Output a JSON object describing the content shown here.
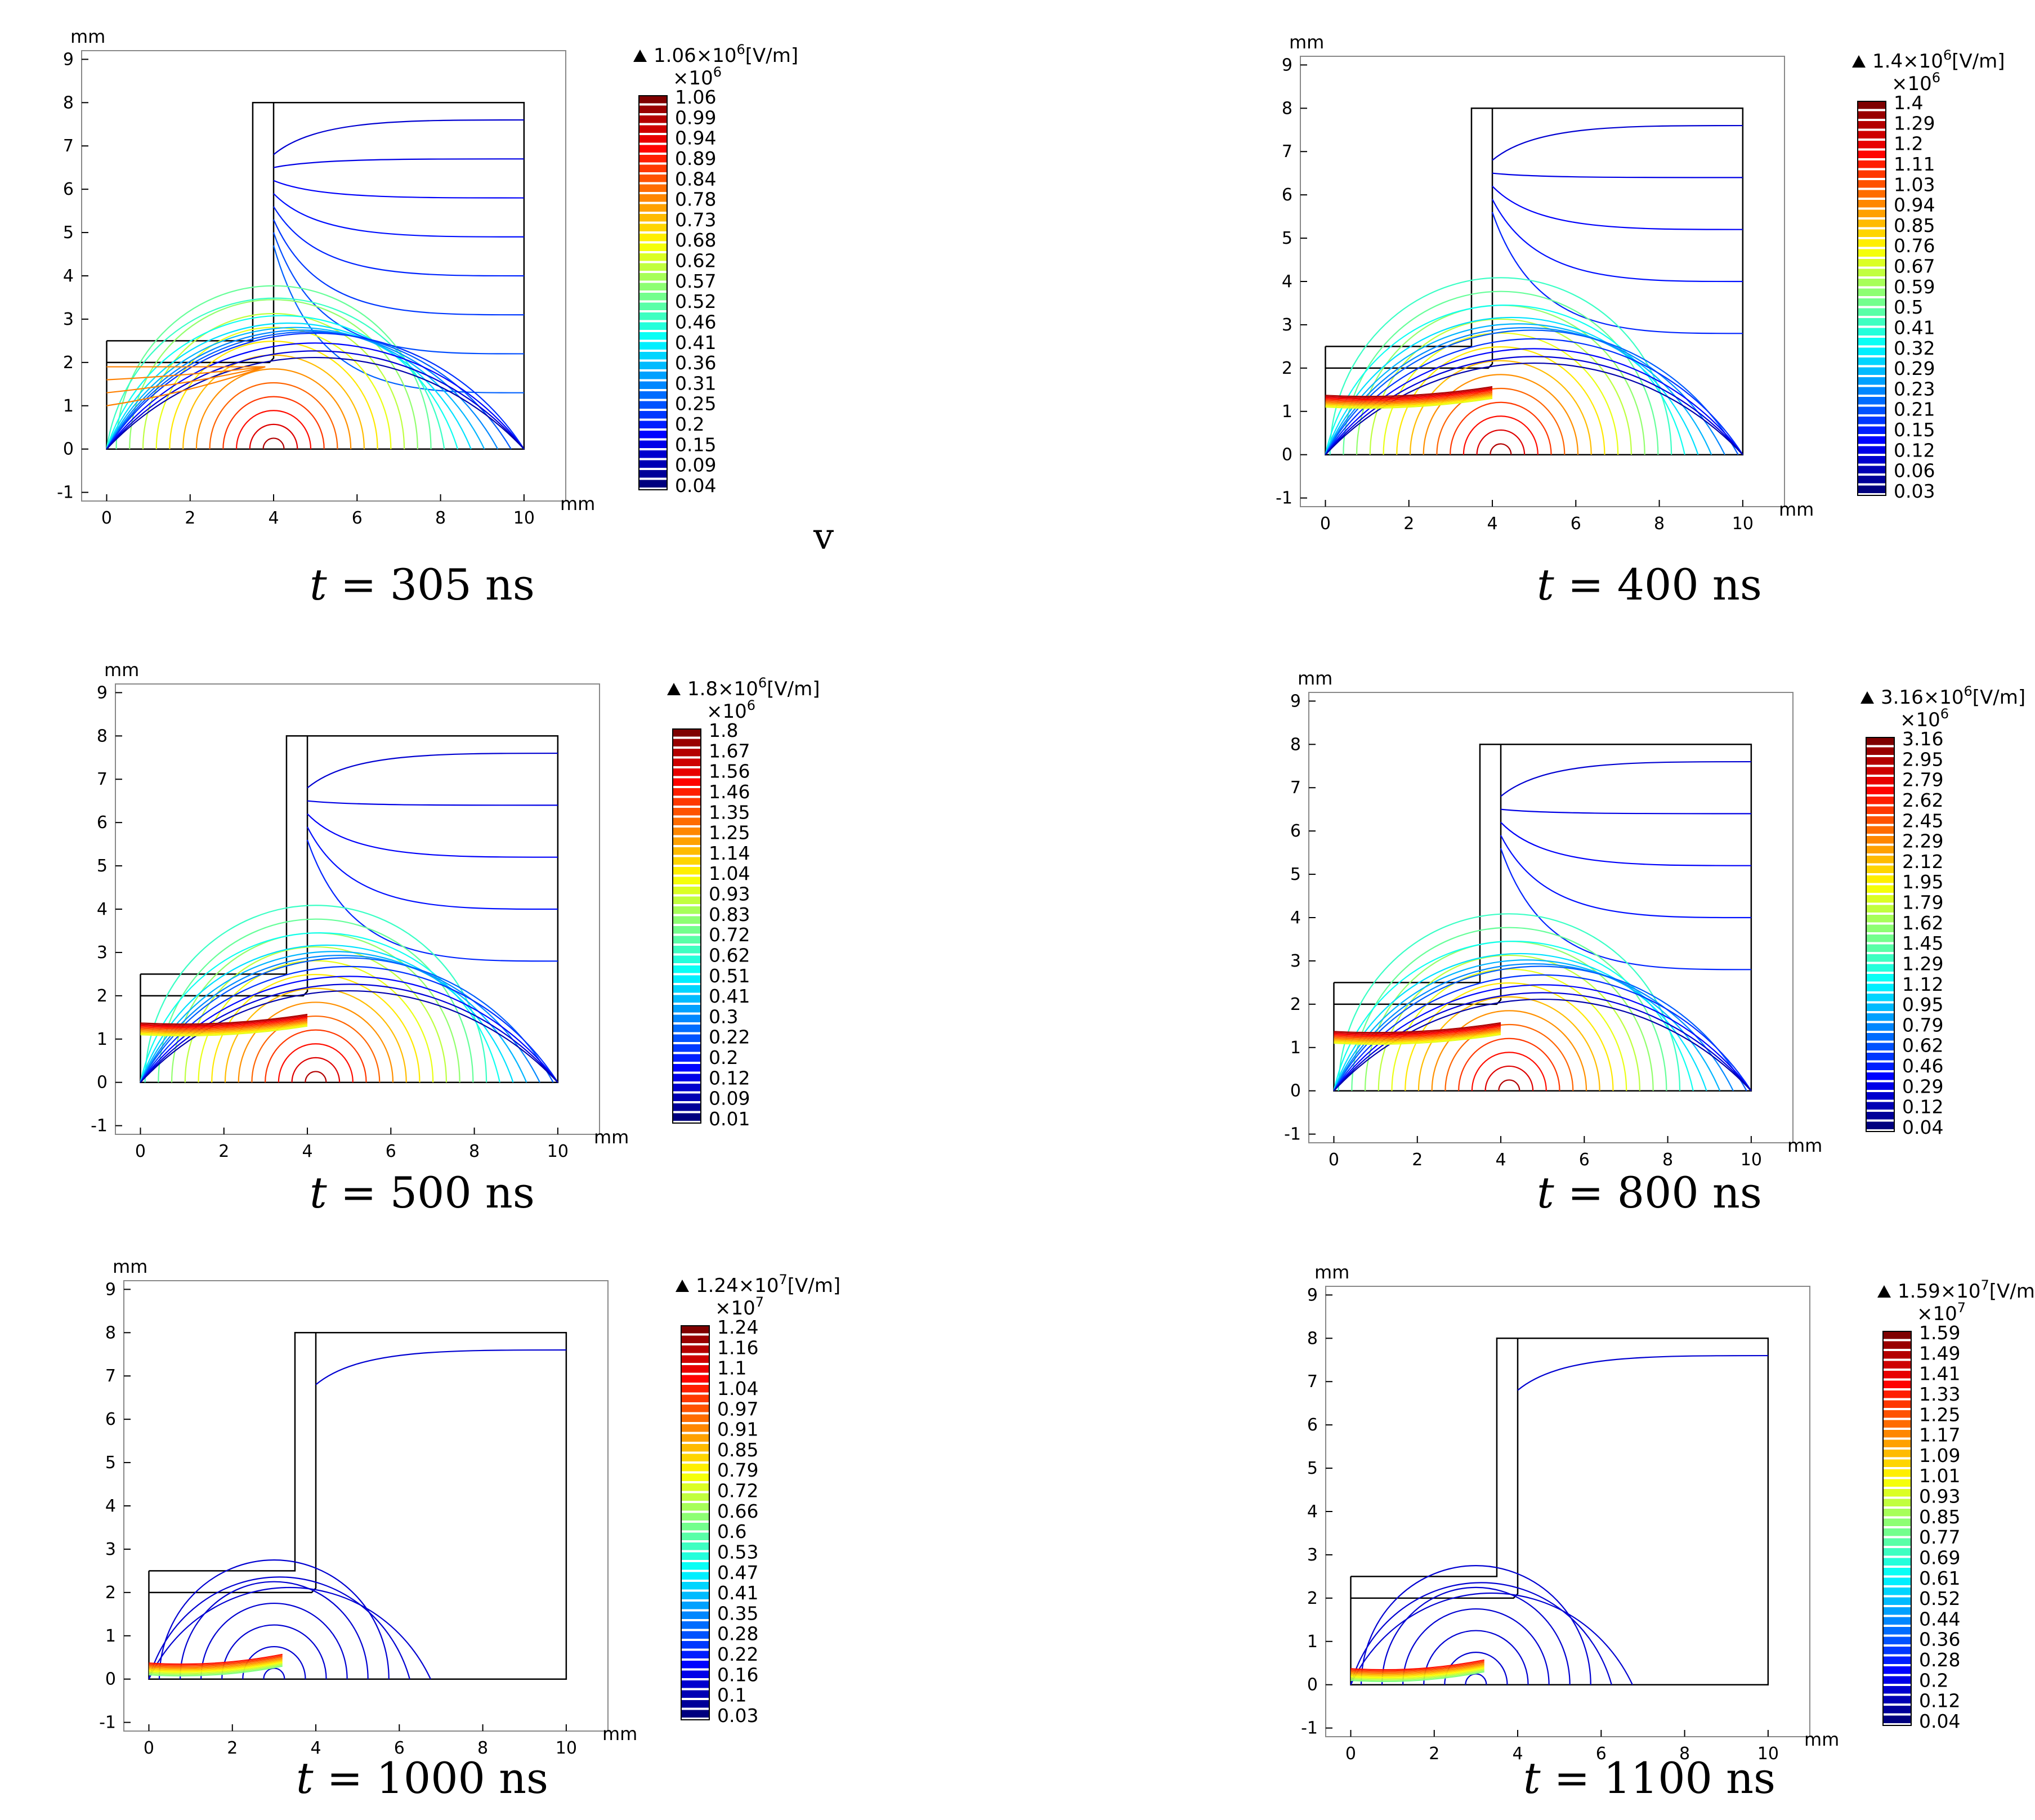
{
  "figure": {
    "axis_unit": "mm",
    "x_ticks": [
      "0",
      "2",
      "4",
      "6",
      "8",
      "10"
    ],
    "y_ticks": [
      "-1",
      "0",
      "1",
      "2",
      "3",
      "4",
      "5",
      "6",
      "7",
      "8",
      "9"
    ],
    "stray_mark": "v",
    "colors": {
      "geometry": "#000000",
      "colormap": [
        "#00007f",
        "#0000ff",
        "#0080ff",
        "#00ffff",
        "#80ff80",
        "#ffff00",
        "#ff8000",
        "#ff0000",
        "#7f0000"
      ]
    },
    "panels": [
      {
        "caption": {
          "var": "t",
          "eq": " = ",
          "value": "305 ns"
        },
        "max_label": {
          "mantissa": "1.06×10",
          "exponent": "6",
          "unit": "[V/m]"
        },
        "scale": {
          "base": "×10",
          "exponent": "6"
        },
        "colorbar_values": [
          "1.06",
          "0.99",
          "0.94",
          "0.89",
          "0.84",
          "0.78",
          "0.73",
          "0.68",
          "0.62",
          "0.57",
          "0.52",
          "0.46",
          "0.41",
          "0.36",
          "0.31",
          "0.25",
          "0.2",
          "0.15",
          "0.09",
          "0.04"
        ],
        "contour_style": "early"
      },
      {
        "caption": {
          "var": "t",
          "eq": " = ",
          "value": "400 ns"
        },
        "max_label": {
          "mantissa": "1.4×10",
          "exponent": "6",
          "unit": "[V/m]"
        },
        "scale": {
          "base": "×10",
          "exponent": "6"
        },
        "colorbar_values": [
          "1.4",
          "1.29",
          "1.2",
          "1.11",
          "1.03",
          "0.94",
          "0.85",
          "0.76",
          "0.67",
          "0.59",
          "0.5",
          "0.41",
          "0.32",
          "0.29",
          "0.23",
          "0.21",
          "0.15",
          "0.12",
          "0.06",
          "0.03"
        ],
        "contour_style": "streamer"
      },
      {
        "caption": {
          "var": "t",
          "eq": " = ",
          "value": "500 ns"
        },
        "max_label": {
          "mantissa": "1.8×10",
          "exponent": "6",
          "unit": "[V/m]"
        },
        "scale": {
          "base": "×10",
          "exponent": "6"
        },
        "colorbar_values": [
          "1.8",
          "1.67",
          "1.56",
          "1.46",
          "1.35",
          "1.25",
          "1.14",
          "1.04",
          "0.93",
          "0.83",
          "0.72",
          "0.62",
          "0.51",
          "0.41",
          "0.3",
          "0.22",
          "0.2",
          "0.12",
          "0.09",
          "0.01"
        ],
        "contour_style": "streamer"
      },
      {
        "caption": {
          "var": "t",
          "eq": " = ",
          "value": "800 ns"
        },
        "max_label": {
          "mantissa": "3.16×10",
          "exponent": "6",
          "unit": "[V/m]"
        },
        "scale": {
          "base": "×10",
          "exponent": "6"
        },
        "colorbar_values": [
          "3.16",
          "2.95",
          "2.79",
          "2.62",
          "2.45",
          "2.29",
          "2.12",
          "1.95",
          "1.79",
          "1.62",
          "1.45",
          "1.29",
          "1.12",
          "0.95",
          "0.79",
          "0.62",
          "0.46",
          "0.29",
          "0.12",
          "0.04"
        ],
        "contour_style": "streamer"
      },
      {
        "caption": {
          "var": "t",
          "eq": " = ",
          "value": "1000 ns"
        },
        "max_label": {
          "mantissa": "1.24×10",
          "exponent": "7",
          "unit": "[V/m]"
        },
        "scale": {
          "base": "×10",
          "exponent": "7"
        },
        "colorbar_values": [
          "1.24",
          "1.16",
          "1.1",
          "1.04",
          "0.97",
          "0.91",
          "0.85",
          "0.79",
          "0.72",
          "0.66",
          "0.6",
          "0.53",
          "0.47",
          "0.41",
          "0.35",
          "0.28",
          "0.22",
          "0.16",
          "0.1",
          "0.03"
        ],
        "contour_style": "late"
      },
      {
        "caption": {
          "var": "t",
          "eq": " = ",
          "value": "1100 ns"
        },
        "max_label": {
          "mantissa": "1.59×10",
          "exponent": "7",
          "unit": "[V/m]"
        },
        "scale": {
          "base": "×10",
          "exponent": "7"
        },
        "colorbar_values": [
          "1.59",
          "1.49",
          "1.41",
          "1.33",
          "1.25",
          "1.17",
          "1.09",
          "1.01",
          "0.93",
          "0.85",
          "0.77",
          "0.69",
          "0.61",
          "0.52",
          "0.44",
          "0.36",
          "0.28",
          "0.2",
          "0.12",
          "0.04"
        ],
        "contour_style": "late"
      }
    ]
  }
}
